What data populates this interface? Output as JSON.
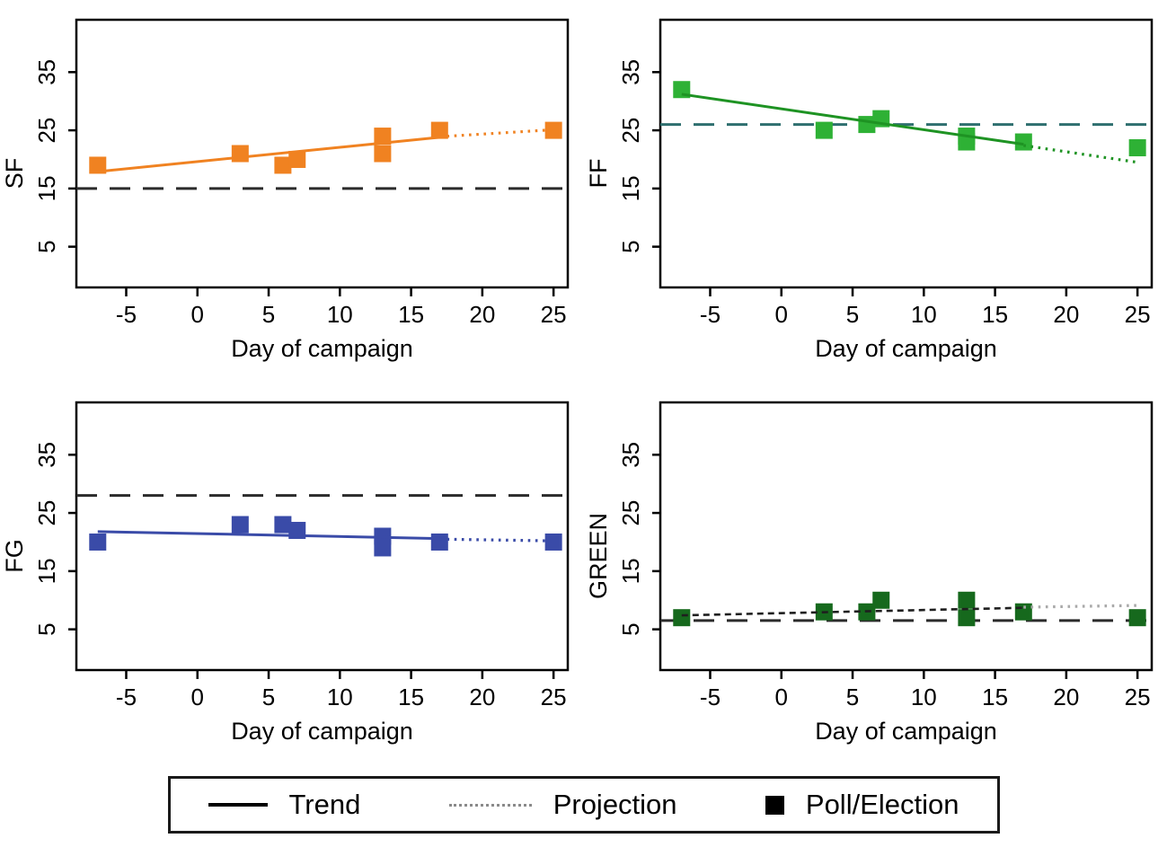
{
  "legend": {
    "items": [
      {
        "symbol": "solid-line",
        "label": "Trend"
      },
      {
        "symbol": "dotted-line",
        "label": "Projection"
      },
      {
        "symbol": "square",
        "label": "Poll/Election"
      }
    ]
  },
  "axes": {
    "xlim": [
      -8.5,
      26
    ],
    "ylim": [
      -2,
      44
    ],
    "xticks": [
      -5,
      0,
      5,
      10,
      15,
      20,
      25
    ],
    "yticks": [
      5,
      15,
      25,
      35
    ],
    "grid": "off",
    "tick_label_rotation_y": -90
  },
  "chart_data": [
    {
      "type": "scatter",
      "title": "SF",
      "ylabel": "SF",
      "xlabel": "Day of campaign",
      "marker_color": "#f08221",
      "trend_color": "#f08221",
      "trend_style": "solid",
      "projection_color": "#f08221",
      "reference_line": {
        "y": 15,
        "color": "#2b2b2b",
        "style": "longdash"
      },
      "points": [
        [
          -7,
          19
        ],
        [
          3,
          21
        ],
        [
          6,
          19
        ],
        [
          7,
          20
        ],
        [
          13,
          21
        ],
        [
          13,
          24
        ],
        [
          17,
          25
        ],
        [
          25,
          25
        ]
      ],
      "trend": {
        "x1": -7,
        "y1": 17.9,
        "x2": 17,
        "y2": 23.8
      },
      "projection": {
        "x1": 17,
        "y1": 23.9,
        "x2": 25,
        "y2": 25.1
      },
      "xlim": [
        -8.5,
        26
      ],
      "ylim": [
        -2,
        44
      ],
      "xticks": [
        -5,
        0,
        5,
        10,
        15,
        20,
        25
      ],
      "yticks": [
        5,
        15,
        25,
        35
      ]
    },
    {
      "type": "scatter",
      "title": "FF",
      "ylabel": "FF",
      "xlabel": "Day of campaign",
      "marker_color": "#2eb135",
      "trend_color": "#1e9323",
      "trend_style": "solid",
      "projection_color": "#1e9323",
      "reference_line": {
        "y": 26,
        "color": "#2e6f6f",
        "style": "longdash"
      },
      "points": [
        [
          -7,
          32
        ],
        [
          3,
          25
        ],
        [
          6,
          26
        ],
        [
          7,
          27
        ],
        [
          13,
          23
        ],
        [
          13,
          24
        ],
        [
          17,
          23
        ],
        [
          25,
          22
        ]
      ],
      "trend": {
        "x1": -7,
        "y1": 31.2,
        "x2": 17,
        "y2": 22.6
      },
      "projection": {
        "x1": 17,
        "y1": 22.4,
        "x2": 25,
        "y2": 19.5
      },
      "xlim": [
        -8.5,
        26
      ],
      "ylim": [
        -2,
        44
      ],
      "xticks": [
        -5,
        0,
        5,
        10,
        15,
        20,
        25
      ],
      "yticks": [
        5,
        15,
        25,
        35
      ]
    },
    {
      "type": "scatter",
      "title": "FG",
      "ylabel": "FG",
      "xlabel": "Day of campaign",
      "marker_color": "#3a4ba8",
      "trend_color": "#3a4ba8",
      "trend_style": "solid",
      "projection_color": "#3a4ba8",
      "reference_line": {
        "y": 28,
        "color": "#2b2b2b",
        "style": "longdash"
      },
      "points": [
        [
          -7,
          20
        ],
        [
          3,
          23
        ],
        [
          6,
          23
        ],
        [
          7,
          22
        ],
        [
          13,
          19
        ],
        [
          13,
          21
        ],
        [
          17,
          20
        ],
        [
          25,
          20
        ]
      ],
      "trend": {
        "x1": -7,
        "y1": 21.8,
        "x2": 17,
        "y2": 20.6
      },
      "projection": {
        "x1": 17,
        "y1": 20.5,
        "x2": 25,
        "y2": 20.2
      },
      "xlim": [
        -8.5,
        26
      ],
      "ylim": [
        -2,
        44
      ],
      "xticks": [
        -5,
        0,
        5,
        10,
        15,
        20,
        25
      ],
      "yticks": [
        5,
        15,
        25,
        35
      ]
    },
    {
      "type": "scatter",
      "title": "GREEN",
      "ylabel": "GREEN",
      "xlabel": "Day of campaign",
      "marker_color": "#16691d",
      "trend_color": "#1f1f1f",
      "trend_style": "shortdash",
      "projection_color": "#a9a9a9",
      "reference_line": {
        "y": 6.5,
        "color": "#2b2b2b",
        "style": "longdash"
      },
      "points": [
        [
          -7,
          7
        ],
        [
          3,
          8
        ],
        [
          6,
          8
        ],
        [
          7,
          10
        ],
        [
          13,
          7
        ],
        [
          13,
          10
        ],
        [
          17,
          8
        ],
        [
          25,
          7
        ]
      ],
      "trend": {
        "x1": -7,
        "y1": 7.4,
        "x2": 17,
        "y2": 8.7
      },
      "projection": {
        "x1": 17,
        "y1": 8.8,
        "x2": 25,
        "y2": 9.1
      },
      "xlim": [
        -8.5,
        26
      ],
      "ylim": [
        -2,
        44
      ],
      "xticks": [
        -5,
        0,
        5,
        10,
        15,
        20,
        25
      ],
      "yticks": [
        5,
        15,
        25,
        35
      ]
    }
  ]
}
